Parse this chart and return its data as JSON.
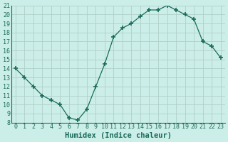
{
  "x": [
    0,
    1,
    2,
    3,
    4,
    5,
    6,
    7,
    8,
    9,
    10,
    11,
    12,
    13,
    14,
    15,
    16,
    17,
    18,
    19,
    20,
    21,
    22,
    23
  ],
  "y": [
    14,
    13,
    12,
    11,
    10.5,
    10,
    8.5,
    8.3,
    9.5,
    12,
    14.5,
    17.5,
    18.5,
    19,
    19.8,
    20.5,
    20.5,
    21,
    20.5,
    20,
    19.5,
    17,
    16.5,
    15.2
  ],
  "line_color": "#1a6b5a",
  "bg_color": "#cceee8",
  "grid_color": "#b0d0ca",
  "xlabel": "Humidex (Indice chaleur)",
  "xlim": [
    -0.5,
    23.5
  ],
  "ylim": [
    8,
    21
  ],
  "yticks": [
    8,
    9,
    10,
    11,
    12,
    13,
    14,
    15,
    16,
    17,
    18,
    19,
    20,
    21
  ],
  "xticks": [
    0,
    1,
    2,
    3,
    4,
    5,
    6,
    7,
    8,
    9,
    10,
    11,
    12,
    13,
    14,
    15,
    16,
    17,
    18,
    19,
    20,
    21,
    22,
    23
  ],
  "xlabel_fontsize": 7.5,
  "tick_fontsize": 6.0
}
